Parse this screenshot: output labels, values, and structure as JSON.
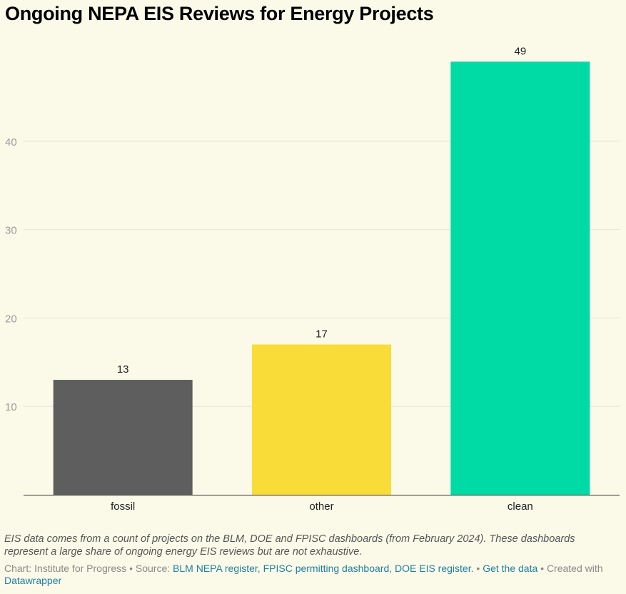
{
  "title": "Ongoing NEPA EIS Reviews for Energy Projects",
  "chart_data": {
    "type": "bar",
    "categories": [
      "fossil",
      "other",
      "clean"
    ],
    "values": [
      13,
      17,
      49
    ],
    "colors": [
      "#5e5e5e",
      "#f9dc38",
      "#00dba6"
    ],
    "yticks": [
      10,
      20,
      30,
      40
    ],
    "ylim": [
      0,
      50
    ],
    "grid": true,
    "title": "Ongoing NEPA EIS Reviews for Energy Projects",
    "xlabel": "",
    "ylabel": ""
  },
  "footer": {
    "note": "EIS data comes from a count of projects on the BLM, DOE and FPISC dashboards (from February 2024). These dashboards represent a large share of ongoing energy EIS reviews but are not exhaustive.",
    "chart_by": "Chart: Institute for Progress",
    "source_prefix": "Source:",
    "source_links": "BLM NEPA register, FPISC permitting dashboard, DOE EIS register.",
    "get_data": "Get the data",
    "created_with": "Created with",
    "datawrapper": "Datawrapper"
  }
}
